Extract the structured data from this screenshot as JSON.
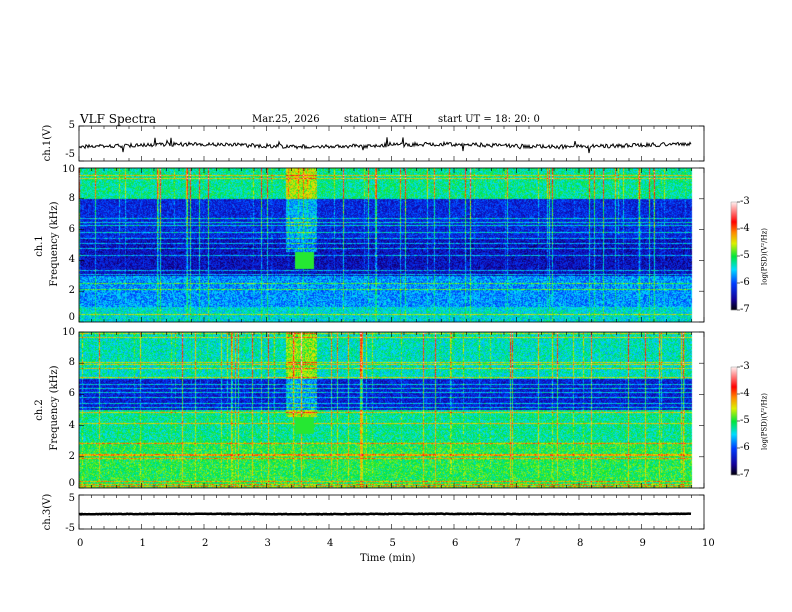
{
  "header": {
    "title": "VLF  Spectra",
    "date": "Mar.25, 2026",
    "station": "station= ATH",
    "start_ut": "start  UT  =   18: 20: 0"
  },
  "chart_data": {
    "type": "heatmap",
    "title": "VLF Spectra",
    "xlabel": "Time  (min)",
    "xlim": [
      0,
      10
    ],
    "xticks": [
      "0",
      "1",
      "2",
      "3",
      "4",
      "5",
      "6",
      "7",
      "8",
      "9",
      "10"
    ],
    "panels": [
      {
        "name": "ch1 waveform",
        "ylabel": "ch.1(V)",
        "ylim": [
          -5,
          5
        ],
        "yticks": [
          "5",
          "-5"
        ],
        "type": "line"
      },
      {
        "name": "ch1 spectrogram",
        "ylabel": "ch.1\nFrequency (kHz)",
        "ylabel_ch": "ch.1",
        "ylabel_freq": "Frequency  (kHz)",
        "ylim": [
          0,
          10
        ],
        "yticks": [
          "10",
          "8",
          "6",
          "4",
          "2",
          "0"
        ],
        "type": "heatmap",
        "colorbar": {
          "label": "log(PSD)(V²/Hz)",
          "range": [
            -7,
            -3
          ],
          "ticks": [
            "-3",
            "-4",
            "-5",
            "-6",
            "-7"
          ]
        }
      },
      {
        "name": "ch2 spectrogram",
        "ylabel_ch": "ch.2",
        "ylabel_freq": "Frequency  (kHz)",
        "ylim": [
          0,
          10
        ],
        "yticks": [
          "10",
          "8",
          "6",
          "4",
          "2",
          "0"
        ],
        "type": "heatmap",
        "colorbar": {
          "label": "log(PSD)(V²/Hz)",
          "range": [
            -7,
            -3
          ],
          "ticks": [
            "-3",
            "-4",
            "-5",
            "-6",
            "-7"
          ]
        }
      },
      {
        "name": "ch3 waveform",
        "ylabel": "ch.3(V)",
        "ylim": [
          -5,
          5
        ],
        "yticks": [
          "5",
          "-5"
        ],
        "type": "line"
      }
    ],
    "data_end_min": 9.8,
    "notable_event": {
      "time_min": [
        3.45,
        3.75
      ],
      "freq_khz": [
        3.5,
        4.5
      ]
    }
  }
}
